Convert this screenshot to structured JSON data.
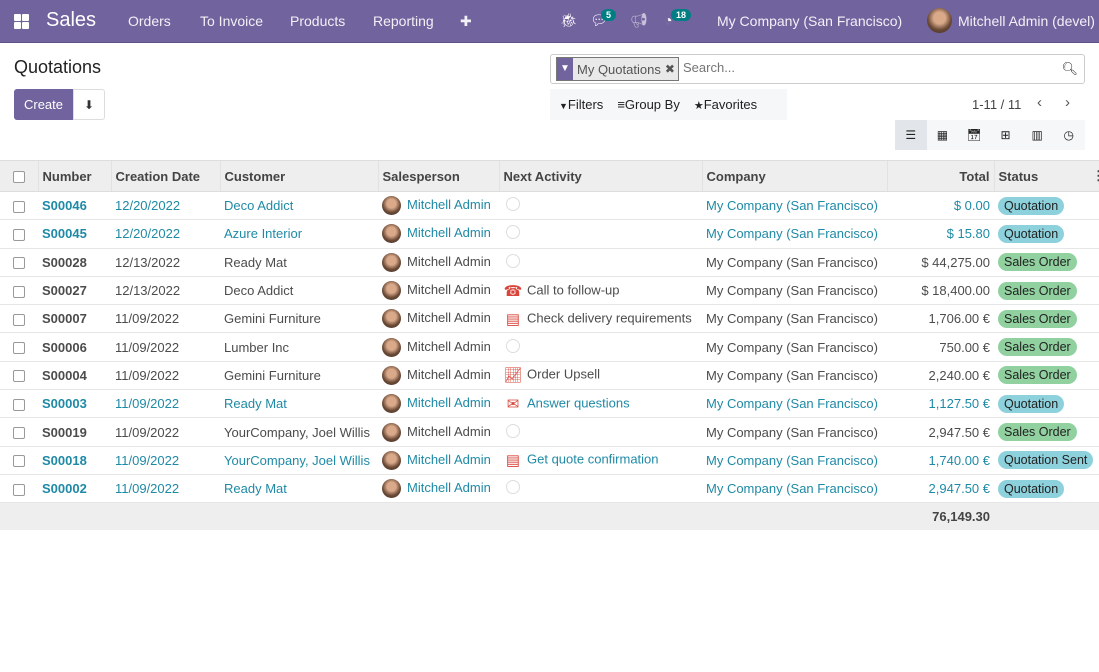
{
  "nav": {
    "app": "Sales",
    "menus": [
      "Orders",
      "To Invoice",
      "Products",
      "Reporting"
    ],
    "plus": "✚",
    "chat_count": "5",
    "activity_count": "18",
    "company": "My Company (San Francisco)",
    "user": "Mitchell Admin (devel)"
  },
  "page": {
    "title": "Quotations",
    "create": "Create"
  },
  "search": {
    "facet": "My Quotations",
    "placeholder": "Search..."
  },
  "filters": {
    "filters": "Filters",
    "group_by": "Group By",
    "favorites": "Favorites"
  },
  "pager": {
    "text": "1-11 / 11"
  },
  "table": {
    "headers": [
      "Number",
      "Creation Date",
      "Customer",
      "Salesperson",
      "Next Activity",
      "Company",
      "Total",
      "Status"
    ],
    "rows": [
      {
        "number": "S00046",
        "date": "12/20/2022",
        "customer": "Deco Addict",
        "salesperson": "Mitchell Admin",
        "activity_icon": "clock",
        "activity": "",
        "company": "My Company (San Francisco)",
        "total": "$ 0.00",
        "status": "Quotation",
        "highlight": true
      },
      {
        "number": "S00045",
        "date": "12/20/2022",
        "customer": "Azure Interior",
        "salesperson": "Mitchell Admin",
        "activity_icon": "clock",
        "activity": "",
        "company": "My Company (San Francisco)",
        "total": "$ 15.80",
        "status": "Quotation",
        "highlight": true
      },
      {
        "number": "S00028",
        "date": "12/13/2022",
        "customer": "Ready Mat",
        "salesperson": "Mitchell Admin",
        "activity_icon": "clock",
        "activity": "",
        "company": "My Company (San Francisco)",
        "total": "$ 44,275.00",
        "status": "Sales Order",
        "highlight": false
      },
      {
        "number": "S00027",
        "date": "12/13/2022",
        "customer": "Deco Addict",
        "salesperson": "Mitchell Admin",
        "activity_icon": "phone",
        "activity": "Call to follow-up",
        "company": "My Company (San Francisco)",
        "total": "$ 18,400.00",
        "status": "Sales Order",
        "highlight": false
      },
      {
        "number": "S00007",
        "date": "11/09/2022",
        "customer": "Gemini Furniture",
        "salesperson": "Mitchell Admin",
        "activity_icon": "server",
        "activity": "Check delivery requirements",
        "company": "My Company (San Francisco)",
        "total": "1,706.00 €",
        "status": "Sales Order",
        "highlight": false
      },
      {
        "number": "S00006",
        "date": "11/09/2022",
        "customer": "Lumber Inc",
        "salesperson": "Mitchell Admin",
        "activity_icon": "clock",
        "activity": "",
        "company": "My Company (San Francisco)",
        "total": "750.00 €",
        "status": "Sales Order",
        "highlight": false
      },
      {
        "number": "S00004",
        "date": "11/09/2022",
        "customer": "Gemini Furniture",
        "salesperson": "Mitchell Admin",
        "activity_icon": "line-chart",
        "activity": "Order Upsell",
        "company": "My Company (San Francisco)",
        "total": "2,240.00 €",
        "status": "Sales Order",
        "highlight": false
      },
      {
        "number": "S00003",
        "date": "11/09/2022",
        "customer": "Ready Mat",
        "salesperson": "Mitchell Admin",
        "activity_icon": "envelope",
        "activity": "Answer questions",
        "company": "My Company (San Francisco)",
        "total": "1,127.50 €",
        "status": "Quotation",
        "highlight": true
      },
      {
        "number": "S00019",
        "date": "11/09/2022",
        "customer": "YourCompany, Joel Willis",
        "salesperson": "Mitchell Admin",
        "activity_icon": "clock",
        "activity": "",
        "company": "My Company (San Francisco)",
        "total": "2,947.50 €",
        "status": "Sales Order",
        "highlight": false
      },
      {
        "number": "S00018",
        "date": "11/09/2022",
        "customer": "YourCompany, Joel Willis",
        "salesperson": "Mitchell Admin",
        "activity_icon": "server",
        "activity": "Get quote confirmation",
        "company": "My Company (San Francisco)",
        "total": "1,740.00 €",
        "status": "Quotation Sent",
        "highlight": true
      },
      {
        "number": "S00002",
        "date": "11/09/2022",
        "customer": "Ready Mat",
        "salesperson": "Mitchell Admin",
        "activity_icon": "clock",
        "activity": "",
        "company": "My Company (San Francisco)",
        "total": "2,947.50 €",
        "status": "Quotation",
        "highlight": true
      }
    ],
    "sum_total": "76,149.30"
  },
  "colors": {
    "brand": "#71639e",
    "link": "#1f8aa6",
    "quotation": "#8dd1dc",
    "sales_order": "#90d19f",
    "activity_red": "#d9453a"
  }
}
